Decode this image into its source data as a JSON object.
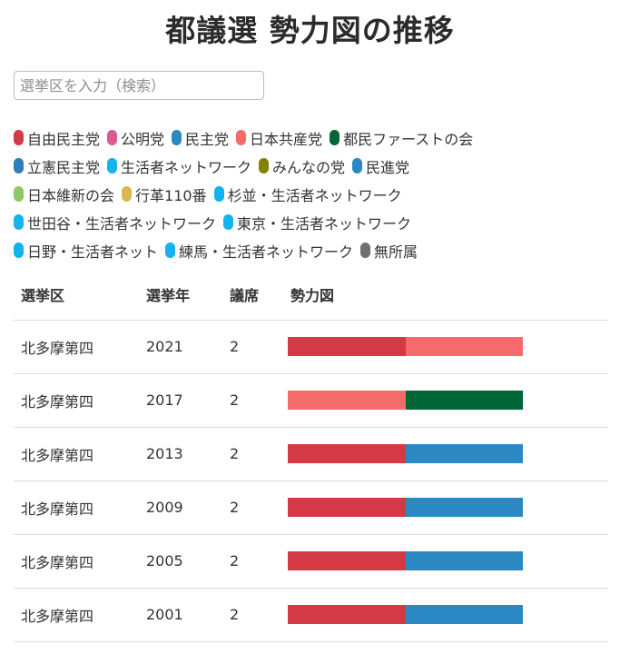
{
  "title": "都議選 勢力図の推移",
  "search": {
    "placeholder": "選挙区を入力（検索）",
    "value": ""
  },
  "legend": [
    {
      "name": "自由民主党",
      "color": "#d33a45"
    },
    {
      "name": "公明党",
      "color": "#d65d92"
    },
    {
      "name": "民主党",
      "color": "#2b88c2"
    },
    {
      "name": "日本共産党",
      "color": "#f56a6a"
    },
    {
      "name": "都民ファーストの会",
      "color": "#006637",
      "break_after": true
    },
    {
      "name": "立憲民主党",
      "color": "#2b80b8"
    },
    {
      "name": "生活者ネットワーク",
      "color": "#12b3ee"
    },
    {
      "name": "みんなの党",
      "color": "#828200"
    },
    {
      "name": "民進党",
      "color": "#2b88c2",
      "break_after": true
    },
    {
      "name": "日本維新の会",
      "color": "#8ec966"
    },
    {
      "name": "行革110番",
      "color": "#d9b94d"
    },
    {
      "name": "杉並・生活者ネットワーク",
      "color": "#12b3ee",
      "break_after": true
    },
    {
      "name": "世田谷・生活者ネットワーク",
      "color": "#12b3ee"
    },
    {
      "name": "東京・生活者ネットワーク",
      "color": "#12b3ee",
      "break_after": true
    },
    {
      "name": "日野・生活者ネット",
      "color": "#12b3ee"
    },
    {
      "name": "練馬・生活者ネットワーク",
      "color": "#12b3ee"
    },
    {
      "name": "無所属",
      "color": "#707070"
    }
  ],
  "table": {
    "headers": {
      "district": "選挙区",
      "year": "選挙年",
      "seats": "議席",
      "chart": "勢力図"
    },
    "rows": [
      {
        "district": "北多摩第四",
        "year": "2021",
        "seats": "2",
        "parties": [
          "自由民主党",
          "日本共産党"
        ]
      },
      {
        "district": "北多摩第四",
        "year": "2017",
        "seats": "2",
        "parties": [
          "日本共産党",
          "都民ファーストの会"
        ]
      },
      {
        "district": "北多摩第四",
        "year": "2013",
        "seats": "2",
        "parties": [
          "自由民主党",
          "民主党"
        ]
      },
      {
        "district": "北多摩第四",
        "year": "2009",
        "seats": "2",
        "parties": [
          "自由民主党",
          "民主党"
        ]
      },
      {
        "district": "北多摩第四",
        "year": "2005",
        "seats": "2",
        "parties": [
          "自由民主党",
          "民主党"
        ]
      },
      {
        "district": "北多摩第四",
        "year": "2001",
        "seats": "2",
        "parties": [
          "自由民主党",
          "民主党"
        ]
      }
    ]
  }
}
